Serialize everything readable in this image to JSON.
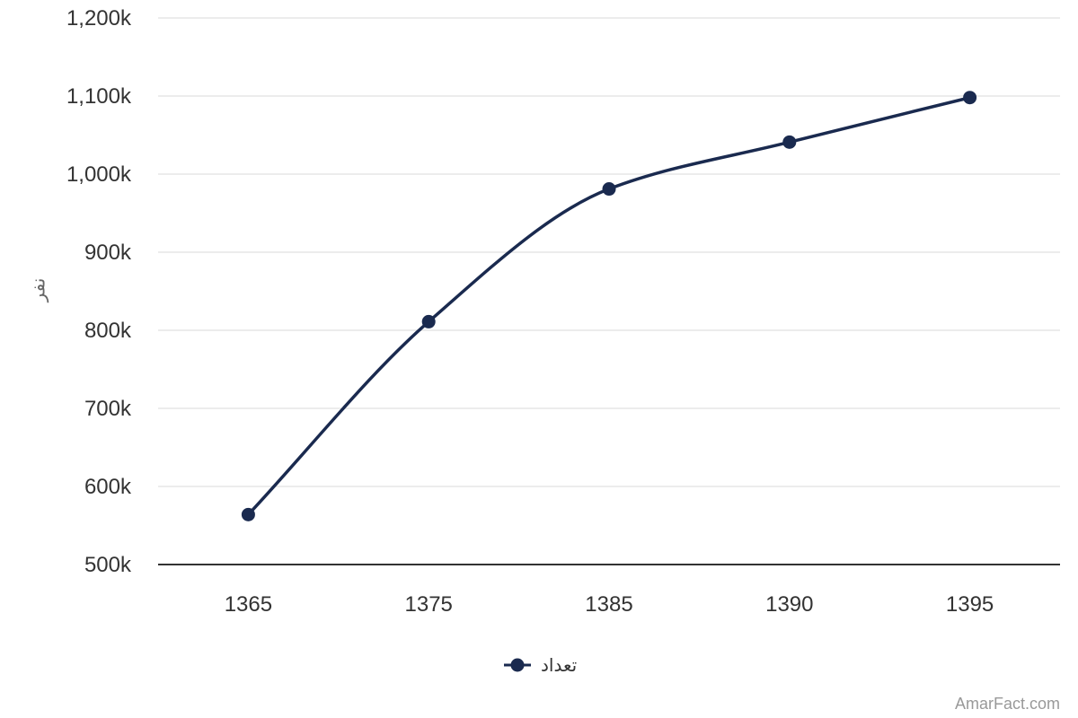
{
  "chart_data": {
    "type": "line",
    "categories": [
      "1365",
      "1375",
      "1385",
      "1390",
      "1395"
    ],
    "series": [
      {
        "name": "تعداد",
        "values": [
          564000,
          811000,
          981000,
          1041000,
          1098000
        ]
      }
    ],
    "ylabel": "نفر",
    "ylim": [
      500000,
      1200000
    ],
    "yticks": [
      500000,
      600000,
      700000,
      800000,
      900000,
      1000000,
      1100000,
      1200000
    ],
    "ytick_labels": [
      "500k",
      "600k",
      "700k",
      "800k",
      "900k",
      "1,000k",
      "1,100k",
      "1,200k"
    ],
    "grid": true,
    "legend_position": "bottom-center",
    "line_color": "#1a2a4f",
    "smooth": true
  },
  "credit": "AmarFact.com"
}
